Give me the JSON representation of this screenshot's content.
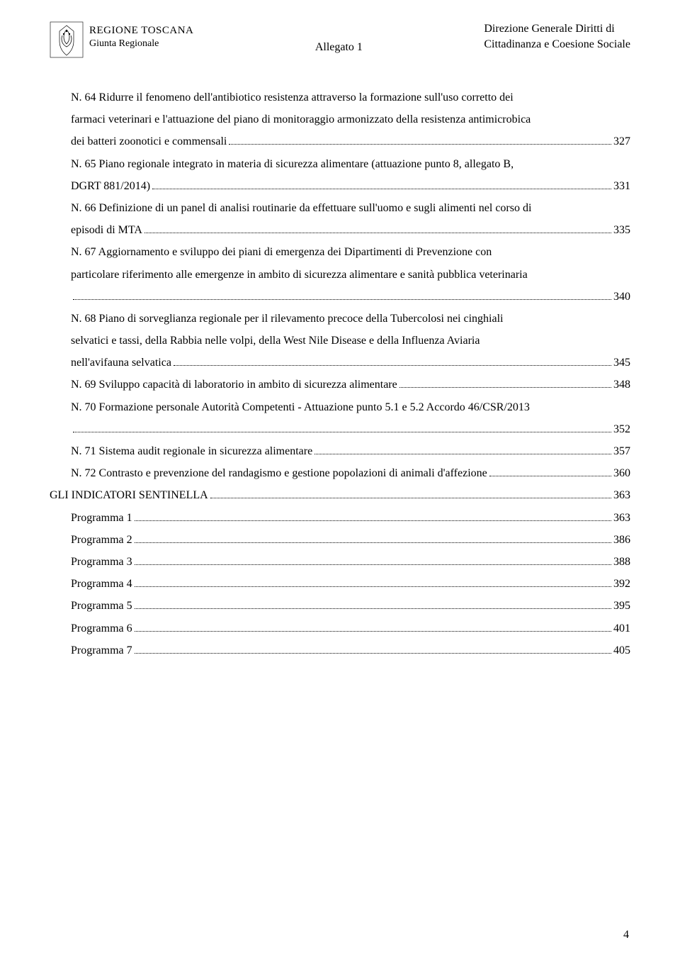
{
  "header": {
    "region_name": "REGIONE TOSCANA",
    "giunta": "Giunta Regionale",
    "allegato": "Allegato 1",
    "direzione_line1": "Direzione Generale Diritti di",
    "direzione_line2": "Cittadinanza e Coesione Sociale"
  },
  "toc": [
    {
      "type": "multi",
      "indent": true,
      "lines": [
        "N. 64 Ridurre il fenomeno dell'antibiotico resistenza attraverso la formazione sull'uso corretto dei",
        "farmaci veterinari e l'attuazione del piano di monitoraggio armonizzato della resistenza antimicrobica"
      ],
      "last": "dei batteri zoonotici e commensali",
      "page": "327"
    },
    {
      "type": "multi",
      "indent": true,
      "lines": [
        "N. 65 Piano regionale integrato in materia di sicurezza alimentare (attuazione punto 8, allegato B,"
      ],
      "last": "DGRT 881/2014)",
      "page": "331"
    },
    {
      "type": "multi",
      "indent": true,
      "lines": [
        "N. 66 Definizione di un panel di analisi routinarie da effettuare sull'uomo e sugli alimenti nel corso di"
      ],
      "last": "episodi di MTA",
      "page": "335"
    },
    {
      "type": "multi",
      "indent": true,
      "lines": [
        "N. 67 Aggiornamento e sviluppo dei piani di emergenza dei Dipartimenti di Prevenzione con",
        "particolare riferimento alle emergenze in ambito di sicurezza alimentare e sanità pubblica veterinaria"
      ],
      "last": "",
      "page": "340"
    },
    {
      "type": "multi",
      "indent": true,
      "lines": [
        "N. 68 Piano di sorveglianza regionale per il rilevamento precoce della Tubercolosi nei cinghiali",
        "selvatici e tassi, della Rabbia nelle volpi, della West Nile Disease e della Influenza Aviaria"
      ],
      "last": "nell'avifauna selvatica",
      "page": "345"
    },
    {
      "type": "single",
      "indent": true,
      "label": "N. 69 Sviluppo capacità di laboratorio in ambito di sicurezza alimentare",
      "page": "348"
    },
    {
      "type": "multi",
      "indent": true,
      "lines": [
        "N. 70 Formazione personale Autorità Competenti - Attuazione punto 5.1 e 5.2 Accordo 46/CSR/2013"
      ],
      "last": "",
      "page": "352"
    },
    {
      "type": "single",
      "indent": true,
      "label": "N. 71 Sistema audit regionale in sicurezza alimentare",
      "page": "357"
    },
    {
      "type": "single",
      "indent": true,
      "label": "N. 72 Contrasto e prevenzione del randagismo e gestione popolazioni di animali d'affezione",
      "page": "360"
    },
    {
      "type": "single",
      "indent": false,
      "label": "GLI INDICATORI SENTINELLA",
      "page": "363"
    },
    {
      "type": "single",
      "indent": true,
      "label": "Programma 1",
      "page": "363"
    },
    {
      "type": "single",
      "indent": true,
      "label": "Programma 2",
      "page": "386"
    },
    {
      "type": "single",
      "indent": true,
      "label": "Programma 3",
      "page": "388"
    },
    {
      "type": "single",
      "indent": true,
      "label": "Programma 4",
      "page": "392"
    },
    {
      "type": "single",
      "indent": true,
      "label": "Programma 5",
      "page": "395"
    },
    {
      "type": "single",
      "indent": true,
      "label": "Programma 6",
      "page": "401"
    },
    {
      "type": "single",
      "indent": true,
      "label": "Programma 7",
      "page": "405"
    }
  ],
  "page_number": "4"
}
